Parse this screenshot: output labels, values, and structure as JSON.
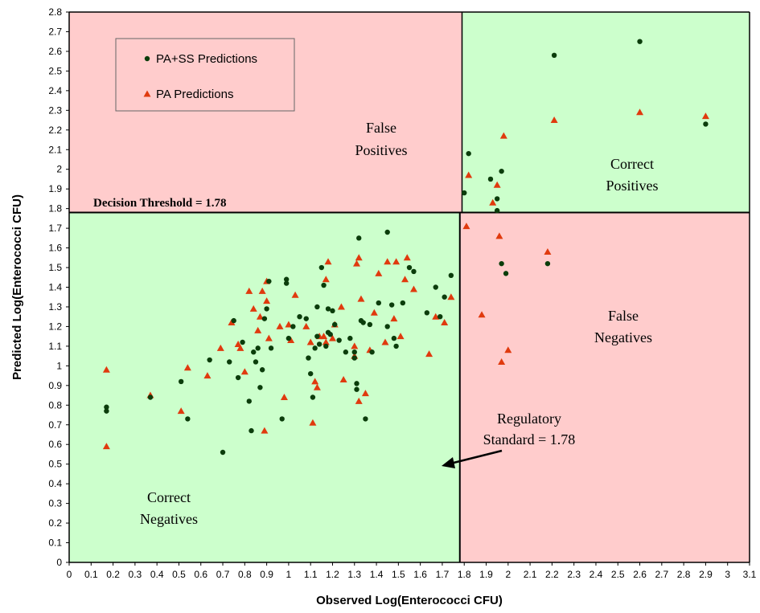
{
  "chart_data": {
    "type": "scatter",
    "xlabel": "Observed Log(Enterococci CFU)",
    "ylabel": "Predicted Log(Enterococci CFU)",
    "xlim": [
      0,
      3.1
    ],
    "ylim": [
      0,
      2.8
    ],
    "x_ticks": [
      "0",
      "0.1",
      "0.2",
      "0.3",
      "0.4",
      "0.5",
      "0.6",
      "0.7",
      "0.8",
      "0.9",
      "1",
      "1.1",
      "1.2",
      "1.3",
      "1.4",
      "1.5",
      "1.6",
      "1.7",
      "1.8",
      "1.9",
      "2",
      "2.1",
      "2.2",
      "2.3",
      "2.4",
      "2.5",
      "2.6",
      "2.7",
      "2.8",
      "2.9",
      "3",
      "3.1"
    ],
    "y_ticks": [
      "0",
      "0.1",
      "0.2",
      "0.3",
      "0.4",
      "0.5",
      "0.6",
      "0.7",
      "0.8",
      "0.9",
      "1",
      "1.1",
      "1.2",
      "1.3",
      "1.4",
      "1.5",
      "1.6",
      "1.7",
      "1.8",
      "1.9",
      "2",
      "2.1",
      "2.2",
      "2.3",
      "2.4",
      "2.5",
      "2.6",
      "2.7",
      "2.8"
    ],
    "grid": false,
    "legend_position": "top-left",
    "decision_threshold": 1.78,
    "regulatory_standard": 1.78,
    "colors": {
      "false_region": "#ffcccc",
      "correct_region": "#ccffcc",
      "pass_marker": "#0b3d0b",
      "pa_marker": "#e03a0e",
      "border": "#000000"
    },
    "regions": {
      "false_positives": [
        "False",
        "Positives"
      ],
      "correct_positives": [
        "Correct",
        "Positives"
      ],
      "false_negatives": [
        "False",
        "Negatives"
      ],
      "correct_negatives": [
        "Correct",
        "Negatives"
      ]
    },
    "annotations": {
      "decision_threshold": "Decision Threshold = 1.78",
      "regulatory_standard": [
        "Regulatory",
        "Standard = 1.78"
      ]
    },
    "series": [
      {
        "name": "PA+SS Predictions",
        "marker": "circle",
        "points": [
          [
            0.17,
            0.79
          ],
          [
            0.17,
            0.77
          ],
          [
            0.37,
            0.84
          ],
          [
            0.51,
            0.92
          ],
          [
            0.54,
            0.73
          ],
          [
            0.64,
            1.03
          ],
          [
            0.7,
            0.56
          ],
          [
            0.73,
            1.02
          ],
          [
            0.75,
            1.23
          ],
          [
            0.77,
            0.94
          ],
          [
            0.79,
            1.12
          ],
          [
            0.82,
            0.82
          ],
          [
            0.83,
            0.67
          ],
          [
            0.84,
            1.07
          ],
          [
            0.85,
            1.02
          ],
          [
            0.86,
            1.09
          ],
          [
            0.87,
            0.89
          ],
          [
            0.88,
            0.98
          ],
          [
            0.89,
            1.24
          ],
          [
            0.9,
            1.29
          ],
          [
            0.91,
            1.43
          ],
          [
            0.92,
            1.09
          ],
          [
            0.97,
            0.73
          ],
          [
            0.99,
            1.44
          ],
          [
            0.99,
            1.42
          ],
          [
            1.0,
            1.14
          ],
          [
            1.02,
            1.2
          ],
          [
            1.05,
            1.25
          ],
          [
            1.08,
            1.24
          ],
          [
            1.09,
            1.04
          ],
          [
            1.1,
            0.96
          ],
          [
            1.11,
            0.84
          ],
          [
            1.12,
            1.09
          ],
          [
            1.13,
            1.15
          ],
          [
            1.13,
            1.3
          ],
          [
            1.14,
            1.11
          ],
          [
            1.15,
            1.5
          ],
          [
            1.16,
            1.41
          ],
          [
            1.17,
            1.1
          ],
          [
            1.18,
            1.17
          ],
          [
            1.18,
            1.29
          ],
          [
            1.19,
            1.16
          ],
          [
            1.2,
            1.28
          ],
          [
            1.21,
            1.21
          ],
          [
            1.23,
            1.13
          ],
          [
            1.26,
            1.07
          ],
          [
            1.28,
            1.14
          ],
          [
            1.3,
            1.07
          ],
          [
            1.3,
            1.04
          ],
          [
            1.31,
            0.88
          ],
          [
            1.31,
            0.91
          ],
          [
            1.32,
            1.65
          ],
          [
            1.33,
            1.23
          ],
          [
            1.34,
            1.22
          ],
          [
            1.35,
            0.73
          ],
          [
            1.37,
            1.21
          ],
          [
            1.38,
            1.07
          ],
          [
            1.41,
            1.32
          ],
          [
            1.45,
            1.68
          ],
          [
            1.45,
            1.2
          ],
          [
            1.47,
            1.31
          ],
          [
            1.48,
            1.14
          ],
          [
            1.49,
            1.1
          ],
          [
            1.52,
            1.32
          ],
          [
            1.55,
            1.5
          ],
          [
            1.57,
            1.48
          ],
          [
            1.63,
            1.27
          ],
          [
            1.67,
            1.4
          ],
          [
            1.69,
            1.25
          ],
          [
            1.71,
            1.35
          ],
          [
            1.74,
            1.46
          ],
          [
            1.8,
            1.88
          ],
          [
            1.82,
            2.08
          ],
          [
            1.92,
            1.95
          ],
          [
            1.95,
            1.85
          ],
          [
            1.95,
            1.79
          ],
          [
            1.97,
            1.99
          ],
          [
            1.97,
            1.52
          ],
          [
            1.99,
            1.47
          ],
          [
            2.18,
            1.52
          ],
          [
            2.21,
            2.58
          ],
          [
            2.6,
            2.65
          ],
          [
            2.9,
            2.23
          ]
        ]
      },
      {
        "name": "PA Predictions",
        "marker": "triangle",
        "points": [
          [
            0.17,
            0.98
          ],
          [
            0.17,
            0.59
          ],
          [
            0.37,
            0.85
          ],
          [
            0.51,
            0.77
          ],
          [
            0.54,
            0.99
          ],
          [
            0.63,
            0.95
          ],
          [
            0.69,
            1.09
          ],
          [
            0.74,
            1.22
          ],
          [
            0.77,
            1.11
          ],
          [
            0.78,
            1.09
          ],
          [
            0.8,
            0.97
          ],
          [
            0.82,
            1.38
          ],
          [
            0.84,
            1.29
          ],
          [
            0.86,
            1.18
          ],
          [
            0.87,
            1.25
          ],
          [
            0.88,
            1.38
          ],
          [
            0.89,
            0.67
          ],
          [
            0.9,
            1.43
          ],
          [
            0.9,
            1.33
          ],
          [
            0.91,
            1.14
          ],
          [
            0.96,
            1.2
          ],
          [
            0.98,
            0.84
          ],
          [
            1.0,
            1.21
          ],
          [
            1.01,
            1.13
          ],
          [
            1.03,
            1.36
          ],
          [
            1.08,
            1.2
          ],
          [
            1.1,
            1.12
          ],
          [
            1.11,
            0.71
          ],
          [
            1.12,
            0.92
          ],
          [
            1.13,
            0.89
          ],
          [
            1.14,
            1.15
          ],
          [
            1.16,
            1.15
          ],
          [
            1.17,
            1.12
          ],
          [
            1.17,
            1.44
          ],
          [
            1.18,
            1.53
          ],
          [
            1.2,
            1.14
          ],
          [
            1.21,
            1.21
          ],
          [
            1.24,
            1.3
          ],
          [
            1.25,
            0.93
          ],
          [
            1.3,
            1.05
          ],
          [
            1.3,
            1.1
          ],
          [
            1.31,
            1.52
          ],
          [
            1.32,
            1.55
          ],
          [
            1.32,
            0.82
          ],
          [
            1.33,
            1.34
          ],
          [
            1.35,
            0.86
          ],
          [
            1.37,
            1.08
          ],
          [
            1.39,
            1.27
          ],
          [
            1.41,
            1.47
          ],
          [
            1.44,
            1.12
          ],
          [
            1.45,
            1.53
          ],
          [
            1.48,
            1.24
          ],
          [
            1.49,
            1.53
          ],
          [
            1.51,
            1.15
          ],
          [
            1.53,
            1.44
          ],
          [
            1.54,
            1.55
          ],
          [
            1.57,
            1.39
          ],
          [
            1.64,
            1.06
          ],
          [
            1.67,
            1.25
          ],
          [
            1.71,
            1.22
          ],
          [
            1.74,
            1.35
          ],
          [
            1.81,
            1.71
          ],
          [
            1.82,
            1.97
          ],
          [
            1.88,
            1.26
          ],
          [
            1.93,
            1.83
          ],
          [
            1.95,
            1.92
          ],
          [
            1.96,
            1.66
          ],
          [
            1.97,
            1.02
          ],
          [
            1.98,
            2.17
          ],
          [
            2.0,
            1.08
          ],
          [
            2.18,
            1.58
          ],
          [
            2.21,
            2.25
          ],
          [
            2.6,
            2.29
          ],
          [
            2.9,
            2.27
          ]
        ]
      }
    ]
  }
}
